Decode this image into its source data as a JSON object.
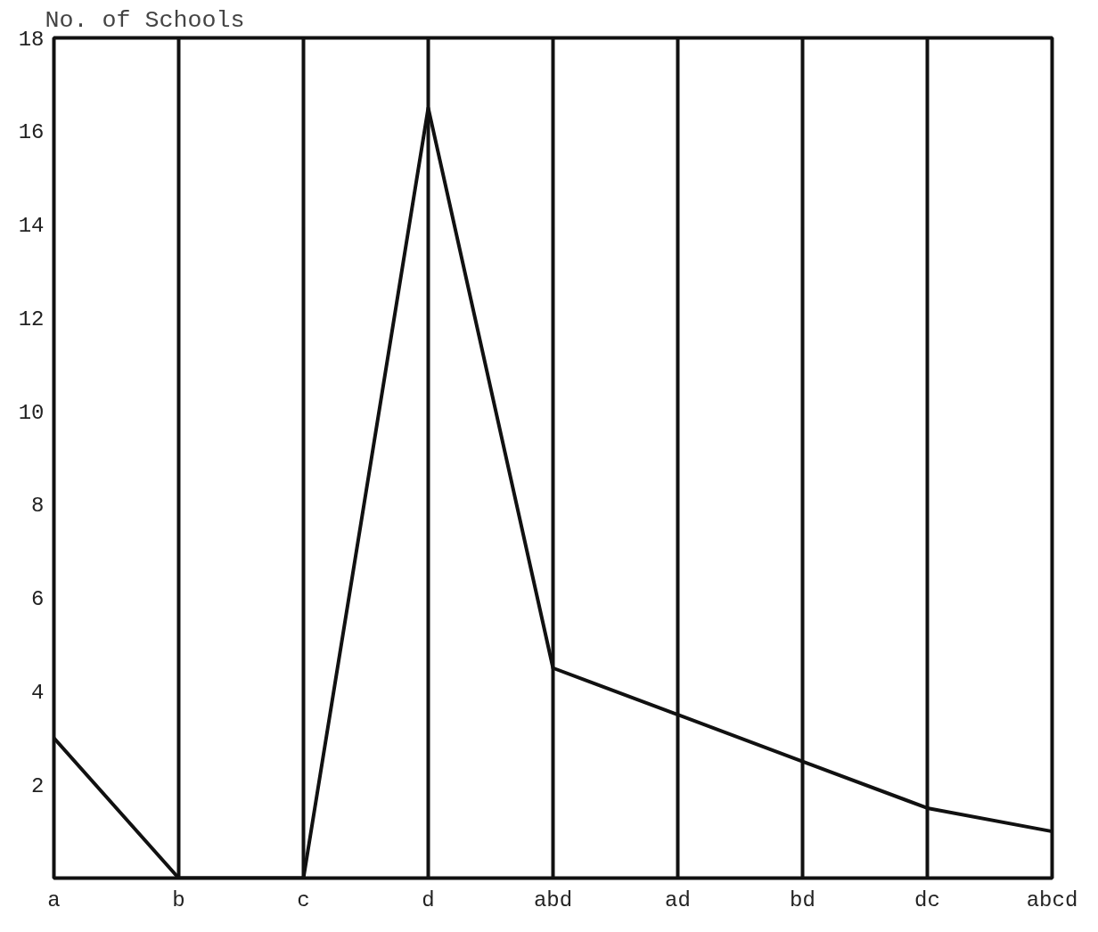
{
  "chart_data": {
    "type": "line",
    "ylabel": "No. of Schools",
    "categories": [
      "a",
      "b",
      "c",
      "d",
      "abd",
      "ad",
      "bd",
      "dc",
      "abcd"
    ],
    "series": [
      {
        "color": "#111111",
        "values": [
          3,
          0,
          0,
          16.5,
          4.5,
          3.5,
          2.5,
          1.5,
          1
        ]
      }
    ],
    "ylim": [
      0,
      18
    ],
    "yticks": [
      2,
      4,
      6,
      8,
      10,
      12,
      14,
      16,
      18
    ],
    "grid": "x",
    "marker": "none",
    "line_style": "solid"
  }
}
